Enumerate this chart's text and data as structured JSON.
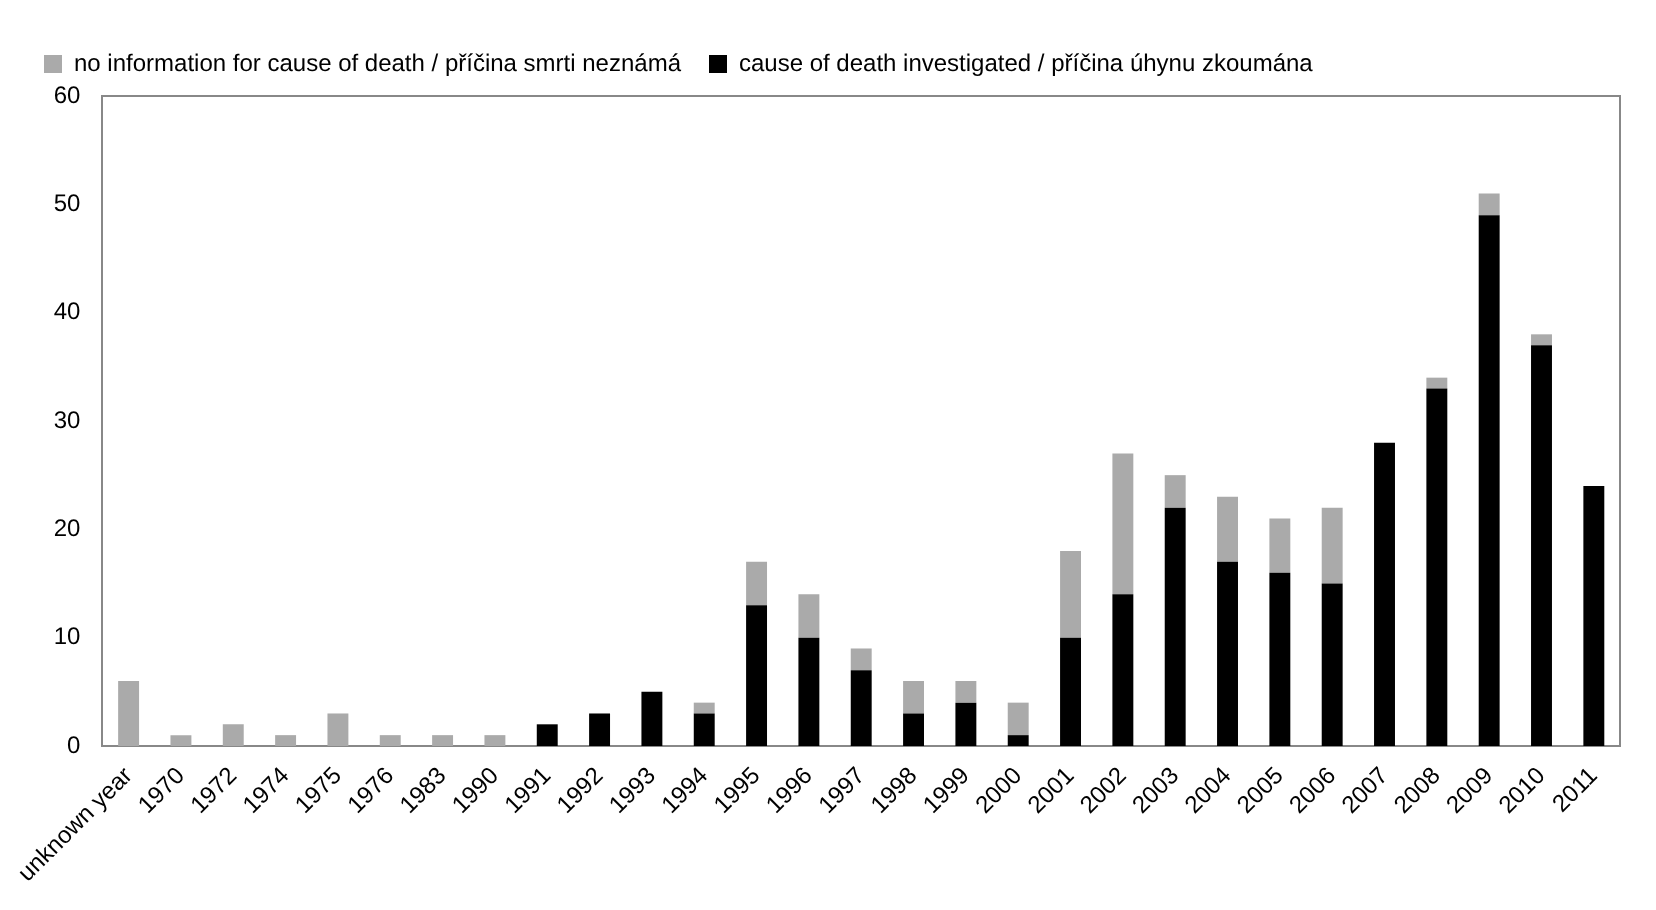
{
  "chart_data": {
    "type": "bar",
    "stacked": true,
    "categories": [
      "unknown year",
      "1970",
      "1972",
      "1974",
      "1975",
      "1976",
      "1983",
      "1990",
      "1991",
      "1992",
      "1993",
      "1994",
      "1995",
      "1996",
      "1997",
      "1998",
      "1999",
      "2000",
      "2001",
      "2002",
      "2003",
      "2004",
      "2005",
      "2006",
      "2007",
      "2008",
      "2009",
      "2010",
      "2011"
    ],
    "series": [
      {
        "name": "cause of death investigated / příčina úhynu zkoumána",
        "color": "#000000",
        "values": [
          0,
          0,
          0,
          0,
          0,
          0,
          0,
          0,
          2,
          3,
          5,
          3,
          13,
          10,
          7,
          3,
          4,
          1,
          10,
          14,
          22,
          17,
          16,
          15,
          28,
          33,
          49,
          37,
          24
        ]
      },
      {
        "name": "no information for cause of death / příčina smrti neznámá",
        "color": "#aaaaaa",
        "values": [
          6,
          1,
          2,
          1,
          3,
          1,
          1,
          1,
          0,
          0,
          0,
          1,
          4,
          4,
          2,
          3,
          2,
          3,
          8,
          13,
          3,
          6,
          5,
          7,
          0,
          1,
          2,
          1,
          0
        ]
      }
    ],
    "ylim": [
      0,
      60
    ],
    "yticks": [
      0,
      10,
      20,
      30,
      40,
      50,
      60
    ],
    "grid": false,
    "legend": "top left"
  }
}
